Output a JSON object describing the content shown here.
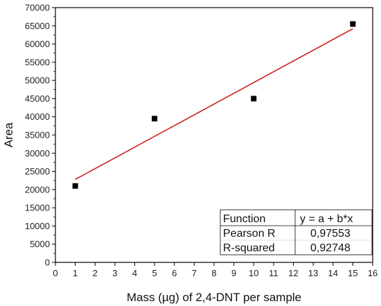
{
  "chart_data": {
    "type": "scatter",
    "xlabel": "Mass (µg) of 2,4-DNT per sample",
    "ylabel": "Area",
    "xlim": [
      0,
      16
    ],
    "ylim": [
      0,
      70000
    ],
    "x_ticks": [
      0,
      1,
      2,
      3,
      4,
      5,
      6,
      7,
      8,
      9,
      10,
      11,
      12,
      13,
      14,
      15,
      16
    ],
    "y_ticks": [
      0,
      5000,
      10000,
      15000,
      20000,
      25000,
      30000,
      35000,
      40000,
      45000,
      50000,
      55000,
      60000,
      65000,
      70000
    ],
    "series": [
      {
        "points": [
          {
            "x": 1,
            "y": 21000
          },
          {
            "x": 5,
            "y": 39500
          },
          {
            "x": 10,
            "y": 45000
          },
          {
            "x": 15,
            "y": 65500
          }
        ],
        "marker": "square",
        "color": "#000000"
      }
    ],
    "fit_line": {
      "x": [
        1,
        15
      ],
      "y": [
        22800,
        64200
      ],
      "color": "#cc2222"
    },
    "stats_table": {
      "rows": [
        {
          "key": "Function",
          "value": "y = a + b*x"
        },
        {
          "key": "Pearson R",
          "value": "0,97553"
        },
        {
          "key": "R-squared",
          "value": "0,92748"
        }
      ]
    }
  }
}
